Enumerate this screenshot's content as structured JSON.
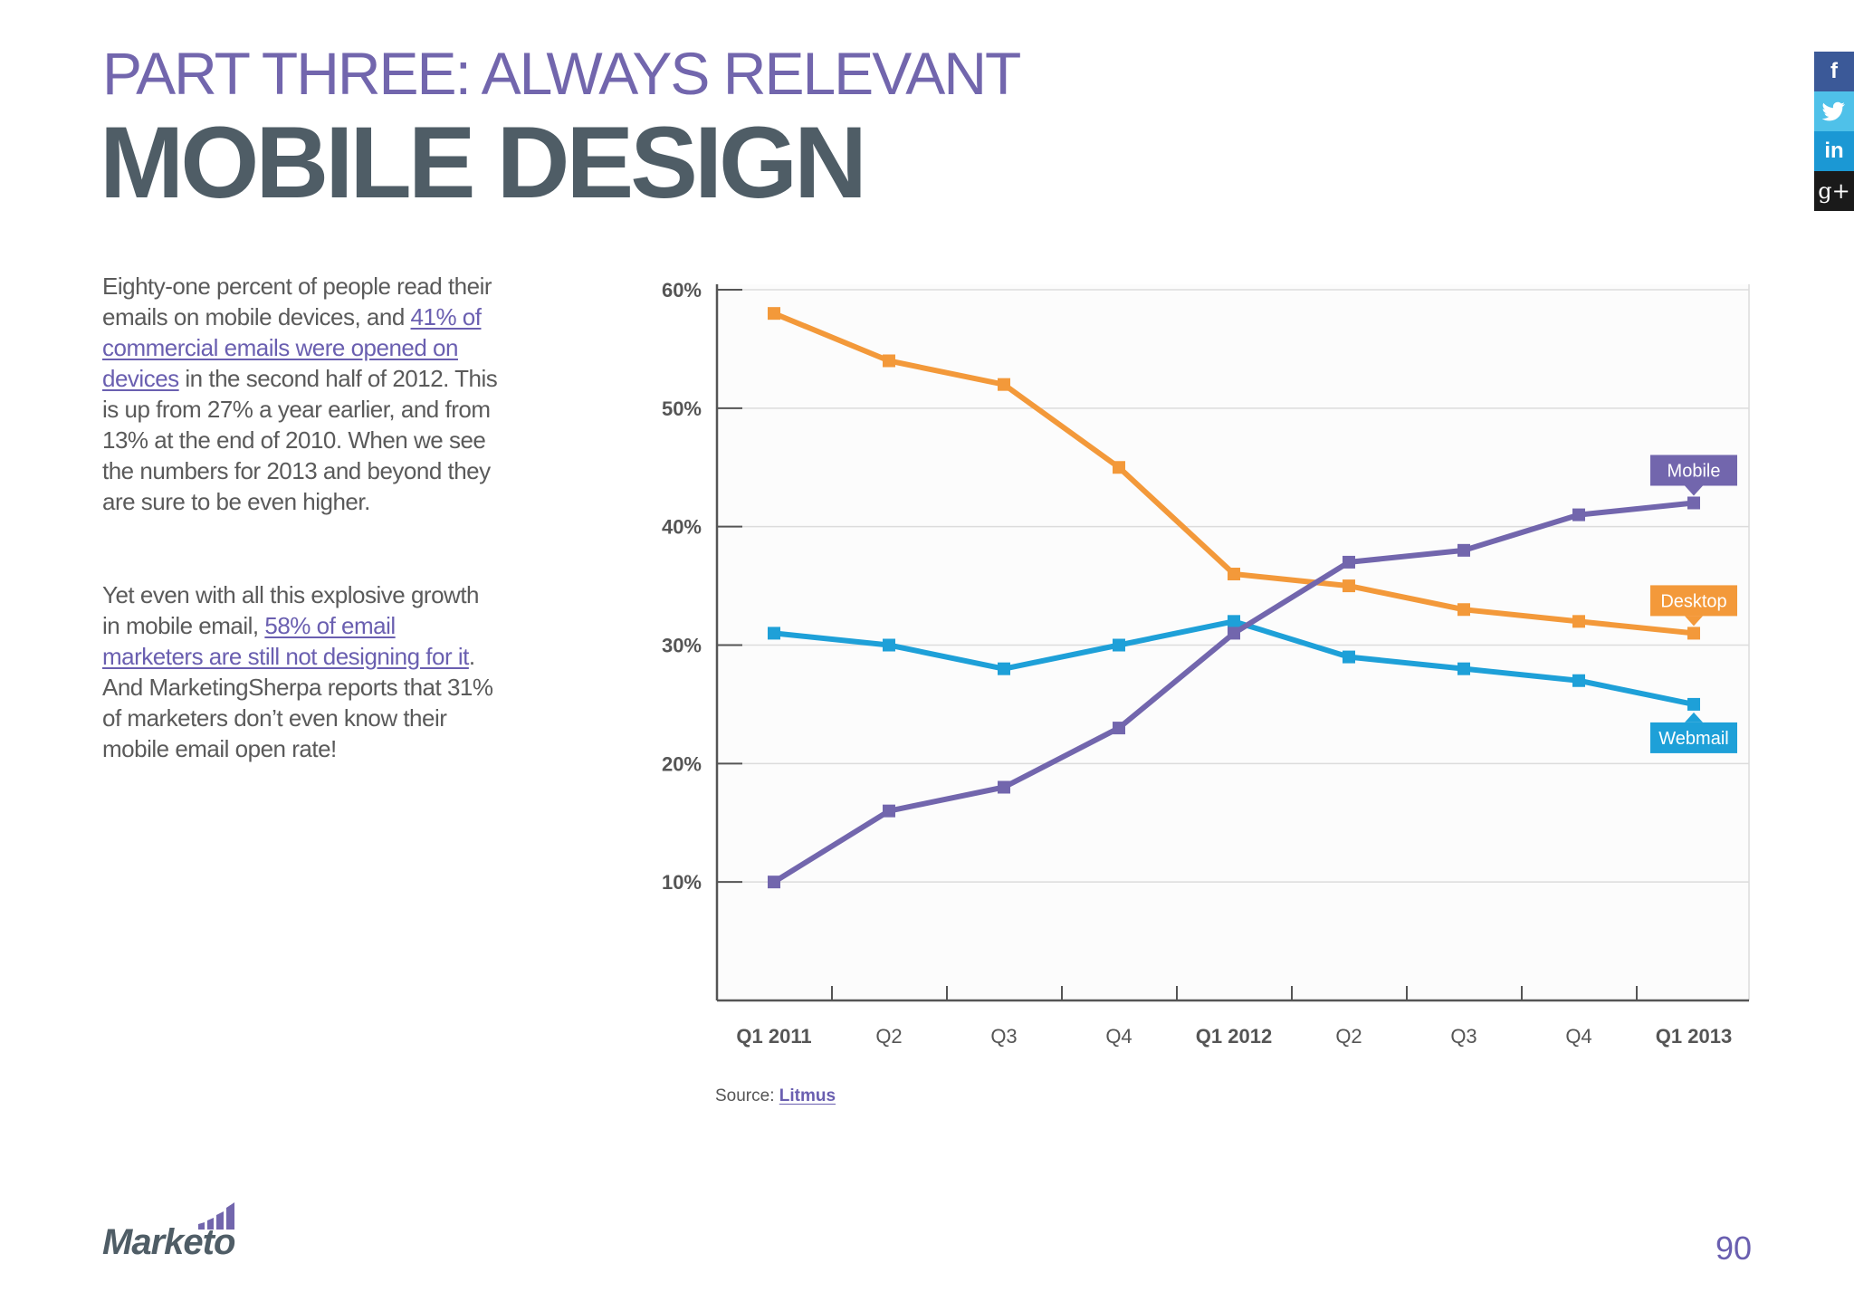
{
  "header": {
    "part_title": "PART THREE: ALWAYS RELEVANT",
    "main_title": "MOBILE DESIGN"
  },
  "body": {
    "p1_text1": "Eighty-one percent of people read their emails on mobile devices, and ",
    "p1_link": "41% of commercial emails were opened on devices",
    "p1_text2": " in the second half of 2012. This is up from 27% a year earlier, and from 13% at the end of 2010. When we see the numbers for 2013 and beyond they are sure to be even higher.",
    "p2_text1": "Yet even with all this explosive growth in mobile email, ",
    "p2_link": "58% of email marketers are still not designing for it",
    "p2_text2": ". And MarketingSherpa reports that 31% of marketers don’t even know their mobile email open rate!"
  },
  "social": [
    {
      "icon": "facebook-icon",
      "glyph": "f",
      "color": "#3b5998"
    },
    {
      "icon": "twitter-icon",
      "glyph": "t",
      "color": "#4fc1e9"
    },
    {
      "icon": "linkedin-icon",
      "glyph": "in",
      "color": "#1b98d4"
    },
    {
      "icon": "google-plus-icon",
      "glyph": "g+",
      "color": "#1a1a1a"
    }
  ],
  "chart_data": {
    "type": "line",
    "categories": [
      "Q1 2011",
      "Q2",
      "Q3",
      "Q4",
      "Q1 2012",
      "Q2",
      "Q3",
      "Q4",
      "Q1 2013"
    ],
    "bold_categories": [
      0,
      4,
      8
    ],
    "y_ticks": [
      "10%",
      "20%",
      "30%",
      "40%",
      "50%",
      "60%"
    ],
    "ylim": [
      0,
      60
    ],
    "grid": true,
    "series": [
      {
        "name": "Desktop",
        "color": "#f3993a",
        "values": [
          58,
          54,
          52,
          45,
          36,
          35,
          33,
          32,
          31
        ]
      },
      {
        "name": "Webmail",
        "color": "#1ea0d8",
        "values": [
          31,
          30,
          28,
          30,
          32,
          29,
          28,
          27,
          25
        ]
      },
      {
        "name": "Mobile",
        "color": "#7266ad",
        "values": [
          10,
          16,
          18,
          23,
          31,
          37,
          38,
          41,
          42
        ]
      }
    ]
  },
  "source": {
    "prefix": "Source: ",
    "link": "Litmus"
  },
  "footer": {
    "logo_text": "Marketo",
    "page_number": "90"
  }
}
